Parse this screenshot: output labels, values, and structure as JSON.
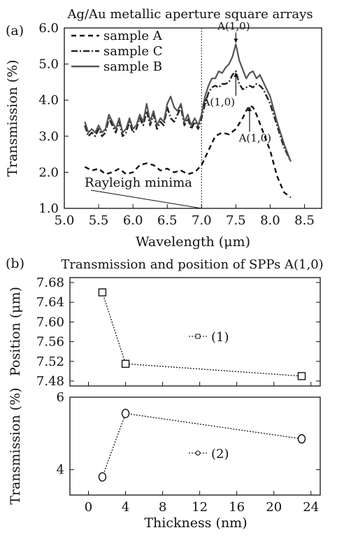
{
  "chart_data": [
    {
      "type": "line",
      "panel_label": "(a)",
      "title": "Ag/Au metallic aperture square arrays",
      "xlabel": "Wavelength (μm)",
      "ylabel": "Transmission (%)",
      "xlim": [
        5.0,
        8.75
      ],
      "ylim": [
        1.0,
        6.0
      ],
      "xticks": [
        "5.0",
        "5.5",
        "6.0",
        "6.5",
        "7.0",
        "7.5",
        "8.0",
        "8.5"
      ],
      "yticks": [
        "1.0",
        "2.0",
        "3.0",
        "4.0",
        "5.0",
        "6.0"
      ],
      "legend_position": "top-left",
      "series": [
        {
          "name": "sample A",
          "line_style": "dashed",
          "x": [
            5.3,
            5.4,
            5.5,
            5.6,
            5.7,
            5.8,
            5.9,
            6.0,
            6.1,
            6.2,
            6.3,
            6.4,
            6.5,
            6.6,
            6.7,
            6.8,
            6.9,
            7.0,
            7.1,
            7.2,
            7.3,
            7.4,
            7.5,
            7.55,
            7.6,
            7.65,
            7.7,
            7.75,
            7.8,
            7.9,
            8.0,
            8.1,
            8.2,
            8.3
          ],
          "y": [
            2.15,
            2.05,
            2.1,
            1.95,
            2.0,
            2.1,
            1.95,
            2.0,
            2.2,
            2.25,
            2.2,
            2.05,
            2.1,
            2.0,
            2.05,
            1.95,
            2.0,
            2.2,
            2.6,
            3.0,
            3.1,
            3.05,
            3.2,
            3.35,
            3.5,
            3.7,
            3.85,
            3.8,
            3.6,
            3.1,
            2.6,
            1.9,
            1.45,
            1.3
          ]
        },
        {
          "name": "sample C",
          "line_style": "dash-dot",
          "x": [
            5.3,
            5.35,
            5.4,
            5.45,
            5.5,
            5.55,
            5.6,
            5.65,
            5.7,
            5.75,
            5.8,
            5.85,
            5.9,
            5.95,
            6.0,
            6.05,
            6.1,
            6.15,
            6.2,
            6.25,
            6.3,
            6.35,
            6.4,
            6.45,
            6.5,
            6.55,
            6.6,
            6.65,
            6.7,
            6.75,
            6.8,
            6.85,
            6.9,
            6.95,
            7.0,
            7.05,
            7.1,
            7.15,
            7.2,
            7.25,
            7.3,
            7.35,
            7.4,
            7.45,
            7.5,
            7.55,
            7.6,
            7.65,
            7.7,
            7.75,
            7.8,
            7.85,
            7.9,
            8.0,
            8.1,
            8.2,
            8.3
          ],
          "y": [
            3.3,
            3.0,
            3.1,
            3.0,
            3.2,
            3.0,
            3.1,
            3.5,
            3.3,
            3.1,
            3.4,
            3.0,
            3.1,
            3.4,
            3.1,
            3.2,
            3.5,
            3.3,
            3.7,
            3.3,
            3.6,
            3.2,
            3.4,
            3.3,
            3.8,
            3.5,
            3.4,
            3.6,
            3.8,
            3.3,
            3.5,
            3.2,
            3.4,
            3.2,
            3.5,
            3.9,
            4.2,
            4.35,
            4.4,
            4.35,
            4.45,
            4.45,
            4.5,
            4.7,
            4.8,
            4.45,
            4.3,
            4.35,
            4.4,
            4.35,
            4.45,
            4.4,
            4.3,
            3.9,
            3.3,
            2.7,
            2.3
          ]
        },
        {
          "name": "sample B",
          "line_style": "solid",
          "x": [
            5.3,
            5.35,
            5.4,
            5.45,
            5.5,
            5.55,
            5.6,
            5.65,
            5.7,
            5.75,
            5.8,
            5.85,
            5.9,
            5.95,
            6.0,
            6.05,
            6.1,
            6.15,
            6.2,
            6.25,
            6.3,
            6.35,
            6.4,
            6.45,
            6.5,
            6.55,
            6.6,
            6.65,
            6.7,
            6.75,
            6.8,
            6.85,
            6.9,
            6.95,
            7.0,
            7.05,
            7.1,
            7.15,
            7.2,
            7.25,
            7.3,
            7.35,
            7.4,
            7.45,
            7.5,
            7.55,
            7.6,
            7.65,
            7.7,
            7.75,
            7.8,
            7.85,
            7.9,
            8.0,
            8.1,
            8.2,
            8.3
          ],
          "y": [
            3.4,
            3.1,
            3.2,
            3.1,
            3.3,
            3.1,
            3.2,
            3.6,
            3.4,
            3.2,
            3.5,
            3.1,
            3.2,
            3.5,
            3.2,
            3.3,
            3.6,
            3.4,
            3.9,
            3.4,
            3.7,
            3.3,
            3.5,
            3.4,
            3.9,
            4.1,
            3.8,
            3.7,
            3.9,
            3.4,
            3.6,
            3.3,
            3.5,
            3.3,
            3.6,
            4.1,
            4.4,
            4.6,
            4.6,
            4.8,
            4.75,
            4.9,
            5.0,
            5.2,
            5.55,
            5.1,
            4.85,
            4.6,
            4.75,
            4.8,
            4.6,
            4.7,
            4.5,
            4.1,
            3.4,
            2.8,
            2.3
          ]
        }
      ],
      "annotations": [
        {
          "text": "A(1,0)",
          "x": 7.5,
          "y": 5.55,
          "label_x": 7.47,
          "label_y": 5.95
        },
        {
          "text": "A(1,0)",
          "x": 7.5,
          "y": 4.8,
          "label_x": 7.25,
          "label_y": 3.85
        },
        {
          "text": "A(1,0)",
          "x": 7.7,
          "y": 3.85,
          "label_x": 7.78,
          "label_y": 2.85
        },
        {
          "text": "Rayleigh minima",
          "x": 7.0,
          "y": 1.0,
          "label_x": 6.08,
          "label_y": 1.6
        }
      ],
      "vertical_line": {
        "x": 7.0,
        "style": "dotted"
      }
    },
    {
      "type": "line",
      "panel_label": "(b)",
      "title": "Transmission and position of SPPs A(1,0)",
      "xlabel": "Thickness (nm)",
      "xlim": [
        -2,
        25
      ],
      "xticks": [
        "0",
        "4",
        "8",
        "12",
        "16",
        "20",
        "24"
      ],
      "subplots": [
        {
          "ylabel": "Position (μm)",
          "ylim": [
            7.47,
            7.69
          ],
          "yticks": [
            "7.68",
            "7.64",
            "7.60",
            "7.56",
            "7.52",
            "7.48"
          ],
          "series": [
            {
              "name": "(1)",
              "marker": "square",
              "x": [
                1.5,
                4,
                23
              ],
              "y": [
                7.66,
                7.515,
                7.49
              ]
            }
          ]
        },
        {
          "ylabel": "Transmission (%)",
          "ylim": [
            3.3,
            6.0
          ],
          "yticks": [
            "6",
            "4"
          ],
          "series": [
            {
              "name": "(2)",
              "marker": "circle",
              "x": [
                1.5,
                4,
                23
              ],
              "y": [
                3.8,
                5.55,
                4.85
              ]
            }
          ]
        }
      ]
    }
  ]
}
